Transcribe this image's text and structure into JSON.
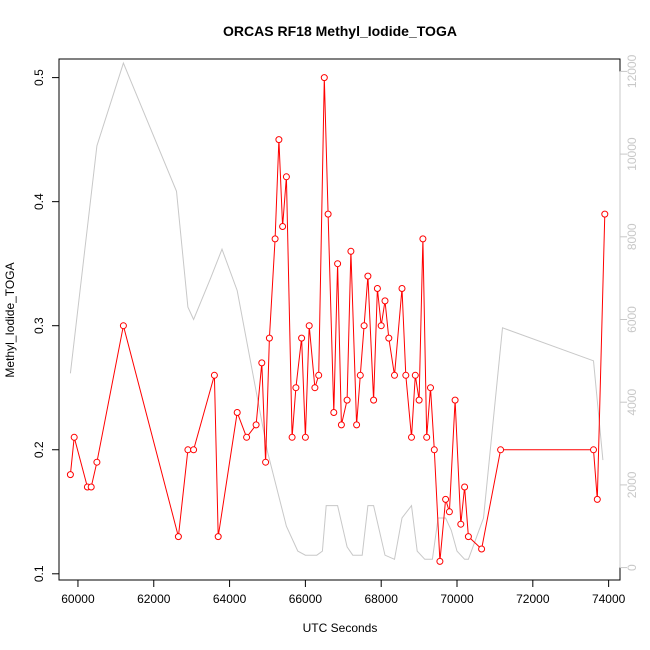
{
  "chart_data": {
    "type": "line",
    "title": "ORCAS RF18 Methyl_Iodide_TOGA",
    "xlabel": "UTC Seconds",
    "ylabel": "Methyl_Iodide_TOGA",
    "xlim": [
      59500,
      74300
    ],
    "ylim": [
      0.095,
      0.515
    ],
    "y2lim": [
      -300,
      12300
    ],
    "x_ticks": [
      60000,
      62000,
      64000,
      66000,
      68000,
      70000,
      72000,
      74000
    ],
    "y_ticks": [
      0.1,
      0.2,
      0.3,
      0.4,
      0.5
    ],
    "y2_ticks": [
      0,
      2000,
      4000,
      6000,
      8000,
      10000,
      12000
    ],
    "colors": {
      "primary": "#ff0000",
      "secondary": "#c8c8c8"
    },
    "series": [
      {
        "color": "#ff0000",
        "markers": "open-circle",
        "axis": "left",
        "x": [
          59800,
          59900,
          60250,
          60350,
          60500,
          61200,
          62650,
          62900,
          63050,
          63600,
          63700,
          64200,
          64450,
          64700,
          64850,
          64950,
          65050,
          65200,
          65300,
          65400,
          65500,
          65650,
          65750,
          65900,
          66000,
          66100,
          66250,
          66350,
          66500,
          66600,
          66750,
          66850,
          66950,
          67100,
          67200,
          67350,
          67450,
          67550,
          67650,
          67800,
          67900,
          68000,
          68100,
          68200,
          68350,
          68550,
          68650,
          68800,
          68900,
          69000,
          69100,
          69200,
          69300,
          69400,
          69550,
          69700,
          69800,
          69950,
          70100,
          70200,
          70300,
          70650,
          71150,
          73600,
          73700,
          73900
        ],
        "y": [
          0.18,
          0.21,
          0.17,
          0.17,
          0.19,
          0.3,
          0.13,
          0.2,
          0.2,
          0.26,
          0.13,
          0.23,
          0.21,
          0.22,
          0.27,
          0.19,
          0.29,
          0.37,
          0.45,
          0.38,
          0.42,
          0.21,
          0.25,
          0.29,
          0.21,
          0.3,
          0.25,
          0.26,
          0.5,
          0.39,
          0.23,
          0.35,
          0.22,
          0.24,
          0.36,
          0.22,
          0.26,
          0.3,
          0.34,
          0.24,
          0.33,
          0.3,
          0.32,
          0.29,
          0.26,
          0.33,
          0.26,
          0.21,
          0.26,
          0.24,
          0.37,
          0.21,
          0.25,
          0.2,
          0.11,
          0.16,
          0.15,
          0.24,
          0.14,
          0.17,
          0.13,
          0.12,
          0.2,
          0.2,
          0.16,
          0.39
        ]
      },
      {
        "color": "#c8c8c8",
        "axis": "right",
        "x": [
          59800,
          60500,
          61200,
          62600,
          62900,
          63050,
          63500,
          63800,
          64200,
          65000,
          65500,
          65800,
          66000,
          66300,
          66450,
          66550,
          66850,
          67100,
          67250,
          67500,
          67650,
          67800,
          68100,
          68350,
          68550,
          68800,
          68950,
          69150,
          69350,
          69500,
          69700,
          69850,
          70000,
          70200,
          70300,
          70700,
          71200,
          73600,
          73850
        ],
        "y": [
          4700,
          10200,
          12200,
          9100,
          6300,
          6000,
          7000,
          7700,
          6700,
          2800,
          1000,
          400,
          300,
          300,
          400,
          1500,
          1500,
          500,
          300,
          300,
          1500,
          1500,
          300,
          200,
          1200,
          1500,
          400,
          200,
          200,
          1200,
          1200,
          900,
          400,
          200,
          200,
          1200,
          5800,
          5000,
          2600
        ]
      }
    ]
  }
}
